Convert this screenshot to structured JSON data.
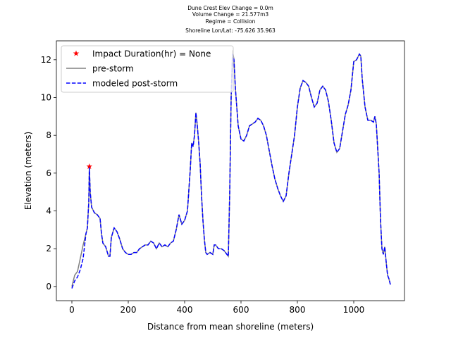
{
  "chart_data": {
    "type": "line",
    "title": [
      "Dune Crest Elev Change = 0.0m",
      "Volume Change = 21.577m3",
      "Regime = Collision",
      "Shoreline Lon/Lat: -75.626 35.963"
    ],
    "x_label": "Distance from mean shoreline (meters)",
    "y_label": "Elevation (meters)",
    "xlim": [
      -55,
      1180
    ],
    "ylim": [
      -0.75,
      13
    ],
    "xticks": [
      0,
      200,
      400,
      600,
      800,
      1000
    ],
    "yticks": [
      0,
      2,
      4,
      6,
      8,
      10,
      12
    ],
    "legend": "upper left",
    "x": [
      0,
      10,
      20,
      30,
      40,
      50,
      55,
      60,
      62,
      65,
      70,
      80,
      90,
      100,
      105,
      110,
      120,
      130,
      135,
      140,
      150,
      160,
      170,
      180,
      190,
      200,
      210,
      220,
      230,
      240,
      250,
      260,
      270,
      280,
      290,
      300,
      310,
      320,
      330,
      340,
      350,
      360,
      370,
      380,
      390,
      400,
      410,
      420,
      425,
      430,
      435,
      440,
      445,
      450,
      455,
      460,
      465,
      470,
      475,
      480,
      490,
      500,
      505,
      510,
      520,
      530,
      540,
      550,
      555,
      560,
      565,
      570,
      575,
      580,
      590,
      600,
      610,
      620,
      630,
      640,
      650,
      660,
      670,
      680,
      690,
      700,
      710,
      720,
      730,
      740,
      750,
      760,
      770,
      780,
      790,
      800,
      810,
      820,
      830,
      840,
      850,
      860,
      870,
      880,
      890,
      900,
      910,
      920,
      930,
      940,
      950,
      960,
      970,
      980,
      990,
      1000,
      1010,
      1020,
      1025,
      1030,
      1040,
      1050,
      1060,
      1070,
      1075,
      1080,
      1090,
      1095,
      1100,
      1105,
      1110,
      1115,
      1120,
      1125,
      1130
    ],
    "series": [
      {
        "name": "Impact Duration(hr) = None",
        "kind": "marker",
        "color": "#ff0000",
        "x": [
          62
        ],
        "values": [
          6.35
        ]
      },
      {
        "name": "pre-storm",
        "kind": "line",
        "color": "#808080",
        "linestyle": "solid",
        "values": [
          0,
          0.6,
          0.8,
          1.5,
          2.2,
          2.8,
          3.1,
          4.5,
          6.3,
          5.0,
          4.2,
          3.9,
          3.8,
          3.6,
          2.8,
          2.3,
          2.1,
          1.6,
          1.6,
          2.6,
          3.1,
          2.9,
          2.5,
          2.0,
          1.8,
          1.7,
          1.7,
          1.8,
          1.8,
          2.0,
          2.1,
          2.2,
          2.2,
          2.4,
          2.3,
          2.0,
          2.3,
          2.1,
          2.2,
          2.1,
          2.3,
          2.4,
          3.0,
          3.8,
          3.3,
          3.5,
          4.0,
          6.2,
          7.6,
          7.4,
          8.0,
          9.2,
          8.5,
          7.6,
          6.5,
          4.8,
          3.5,
          2.5,
          1.8,
          1.7,
          1.8,
          1.7,
          2.2,
          2.2,
          2.0,
          2.0,
          1.9,
          1.7,
          1.6,
          5.0,
          10.0,
          12.5,
          12.0,
          10.5,
          8.5,
          7.8,
          7.7,
          8.0,
          8.5,
          8.6,
          8.7,
          8.9,
          8.8,
          8.5,
          8.0,
          7.2,
          6.4,
          5.7,
          5.2,
          4.8,
          4.5,
          4.8,
          6.0,
          7.0,
          8.0,
          9.5,
          10.5,
          10.9,
          10.8,
          10.6,
          10.0,
          9.5,
          9.7,
          10.4,
          10.6,
          10.4,
          9.8,
          8.8,
          7.6,
          7.1,
          7.3,
          8.2,
          9.1,
          9.6,
          10.4,
          11.9,
          12.0,
          12.3,
          12.2,
          11.0,
          9.5,
          8.8,
          8.8,
          8.7,
          9.0,
          8.6,
          6.0,
          3.5,
          2.0,
          1.7,
          2.1,
          1.3,
          0.6,
          0.4,
          0.1
        ]
      },
      {
        "name": "modeled post-storm",
        "kind": "line",
        "color": "#0000ff",
        "linestyle": "dashed",
        "values": [
          -0.1,
          0.3,
          0.5,
          0.9,
          1.5,
          2.8,
          3.1,
          4.5,
          6.3,
          5.0,
          4.2,
          3.9,
          3.8,
          3.6,
          2.8,
          2.3,
          2.1,
          1.6,
          1.6,
          2.6,
          3.1,
          2.9,
          2.5,
          2.0,
          1.8,
          1.7,
          1.7,
          1.8,
          1.8,
          2.0,
          2.1,
          2.2,
          2.2,
          2.4,
          2.3,
          2.0,
          2.3,
          2.1,
          2.2,
          2.1,
          2.3,
          2.4,
          3.0,
          3.8,
          3.3,
          3.5,
          4.0,
          6.2,
          7.6,
          7.4,
          8.0,
          9.2,
          8.5,
          7.6,
          6.5,
          4.8,
          3.5,
          2.5,
          1.8,
          1.7,
          1.8,
          1.7,
          2.2,
          2.2,
          2.0,
          2.0,
          1.9,
          1.7,
          1.6,
          5.0,
          10.0,
          12.3,
          12.0,
          10.5,
          8.5,
          7.8,
          7.7,
          8.0,
          8.5,
          8.6,
          8.7,
          8.9,
          8.8,
          8.5,
          8.0,
          7.2,
          6.4,
          5.7,
          5.2,
          4.8,
          4.5,
          4.8,
          6.0,
          7.0,
          8.0,
          9.5,
          10.5,
          10.9,
          10.8,
          10.6,
          10.0,
          9.5,
          9.7,
          10.4,
          10.6,
          10.4,
          9.8,
          8.8,
          7.6,
          7.1,
          7.3,
          8.2,
          9.1,
          9.6,
          10.4,
          11.9,
          12.0,
          12.3,
          12.2,
          11.0,
          9.5,
          8.8,
          8.8,
          8.7,
          9.0,
          8.6,
          6.0,
          3.5,
          2.0,
          1.7,
          2.1,
          1.3,
          0.6,
          0.4,
          0.1
        ]
      }
    ]
  }
}
